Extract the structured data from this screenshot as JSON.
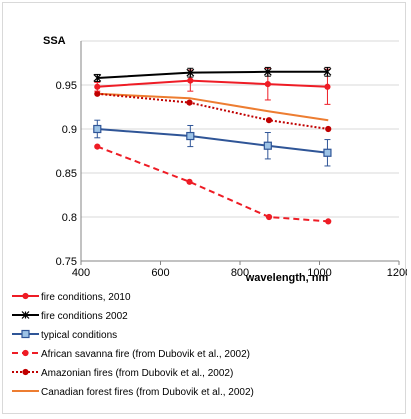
{
  "chart_data": {
    "type": "line",
    "title": "",
    "ylabel": "SSA",
    "xlabel": "wavelength, nm",
    "xlim": [
      400,
      1200
    ],
    "ylim": [
      0.75,
      1.0
    ],
    "xticks": [
      400,
      600,
      800,
      1000,
      1200
    ],
    "yticks": [
      0.75,
      0.8,
      0.85,
      0.9,
      0.95
    ],
    "xtick_labels": [
      "400",
      "600",
      "800",
      "1000",
      "1200"
    ],
    "ytick_labels": [
      "0.75",
      "0.8",
      "0.85",
      "0.9",
      "0.95"
    ],
    "grid": "horizontal",
    "legend_position": "bottom",
    "series": [
      {
        "name": "fire conditions, 2010",
        "color": "#ee1c25",
        "line": "solid",
        "marker": "dot",
        "x": [
          441,
          675,
          870,
          1020
        ],
        "y": [
          0.948,
          0.955,
          0.951,
          0.948
        ],
        "err": [
          0.005,
          0.012,
          0.018,
          0.02
        ]
      },
      {
        "name": "fire conditions 2002",
        "color": "#000000",
        "line": "solid",
        "marker": "star",
        "x": [
          441,
          675,
          870,
          1020
        ],
        "y": [
          0.958,
          0.964,
          0.965,
          0.965
        ],
        "err": [
          0.004,
          0.005,
          0.005,
          0.005
        ]
      },
      {
        "name": "typical conditions",
        "color": "#2f5597",
        "line": "solid",
        "marker": "square",
        "x": [
          441,
          675,
          870,
          1020
        ],
        "y": [
          0.9,
          0.892,
          0.881,
          0.873
        ],
        "err": [
          0.01,
          0.012,
          0.015,
          0.015
        ]
      },
      {
        "name": "African savanna fire (from Dubovik et al., 2002)",
        "color": "#ee1c25",
        "line": "dashed",
        "marker": "dot",
        "x": [
          441,
          673,
          873,
          1022
        ],
        "y": [
          0.88,
          0.84,
          0.8,
          0.795
        ]
      },
      {
        "name": "Amazonian fires (from Dubovik et al., 2002)",
        "color": "#c00000",
        "line": "dotted",
        "marker": "dot",
        "x": [
          441,
          673,
          873,
          1022
        ],
        "y": [
          0.94,
          0.93,
          0.91,
          0.9
        ]
      },
      {
        "name": "Canadian forest fires (from Dubovik et al., 2002)",
        "color": "#ed7d31",
        "line": "solid",
        "marker": "none",
        "x": [
          441,
          673,
          873,
          1022
        ],
        "y": [
          0.94,
          0.935,
          0.92,
          0.91
        ]
      }
    ]
  }
}
